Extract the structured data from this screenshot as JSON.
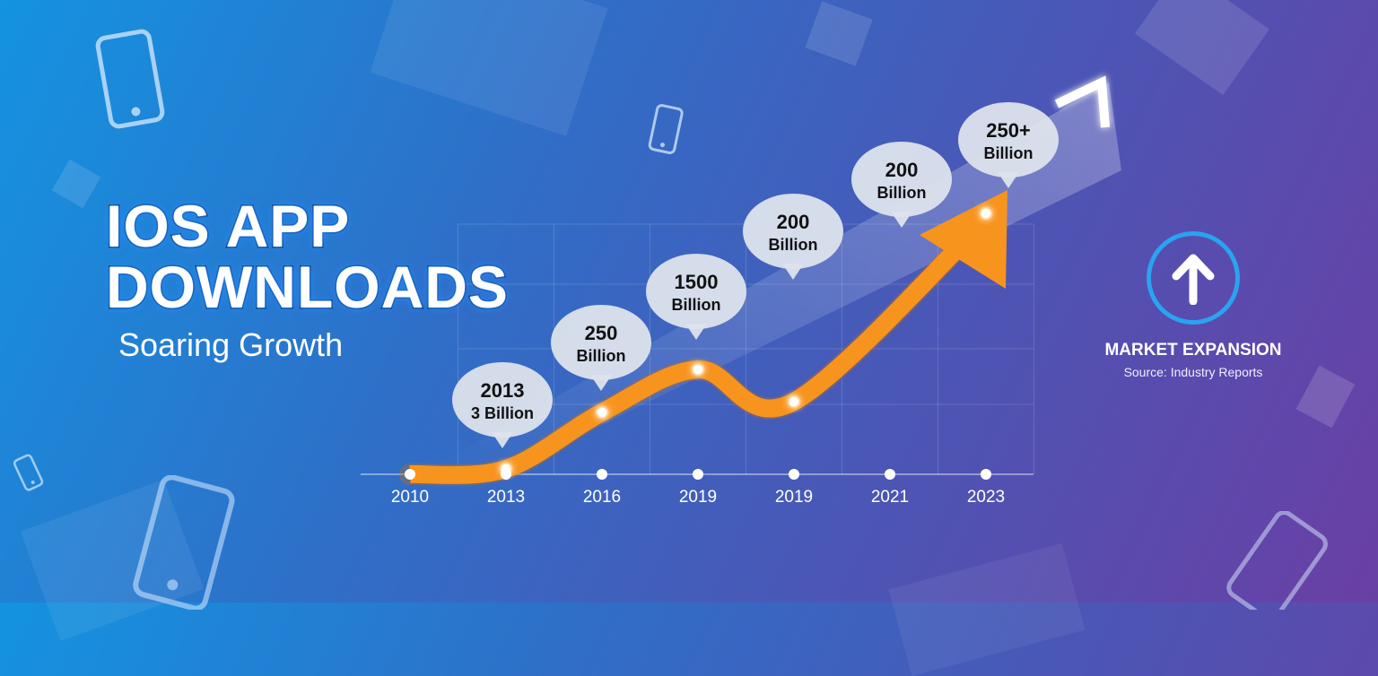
{
  "title": {
    "line1": "IOS APP",
    "line2": "DOWNLOADS",
    "subtitle": "Soaring Growth"
  },
  "side_panel": {
    "icon": "arrow-up-icon",
    "label": "MARKET EXPANSION",
    "source": "Source: Industry Reports"
  },
  "colors": {
    "background_start": "#1493e0",
    "background_end": "#6a3fa4",
    "curve": "#f7941d",
    "bubble": "#dde3ec",
    "circle_accent": "#2aa3f0"
  },
  "chart_data": {
    "type": "line",
    "x_labels": [
      "2010",
      "2013",
      "2016",
      "2019",
      "2019",
      "2021",
      "2023"
    ],
    "callouts": [
      {
        "index": 1,
        "line1": "2013",
        "line2": "3 Billion"
      },
      {
        "index": 2,
        "line1": "250",
        "line2": "Billion"
      },
      {
        "index": 3,
        "line1": "1500",
        "line2": "Billion"
      },
      {
        "index": 4,
        "line1": "200",
        "line2": "Billion"
      },
      {
        "index": 5,
        "line1": "200",
        "line2": "Billion"
      },
      {
        "index": 6,
        "line1": "250+",
        "line2": "Billion"
      }
    ],
    "trend_level": [
      0,
      0.02,
      0.23,
      0.39,
      0.27,
      null,
      0.97
    ],
    "grid": true,
    "arrow_end": true,
    "legend": "none"
  }
}
